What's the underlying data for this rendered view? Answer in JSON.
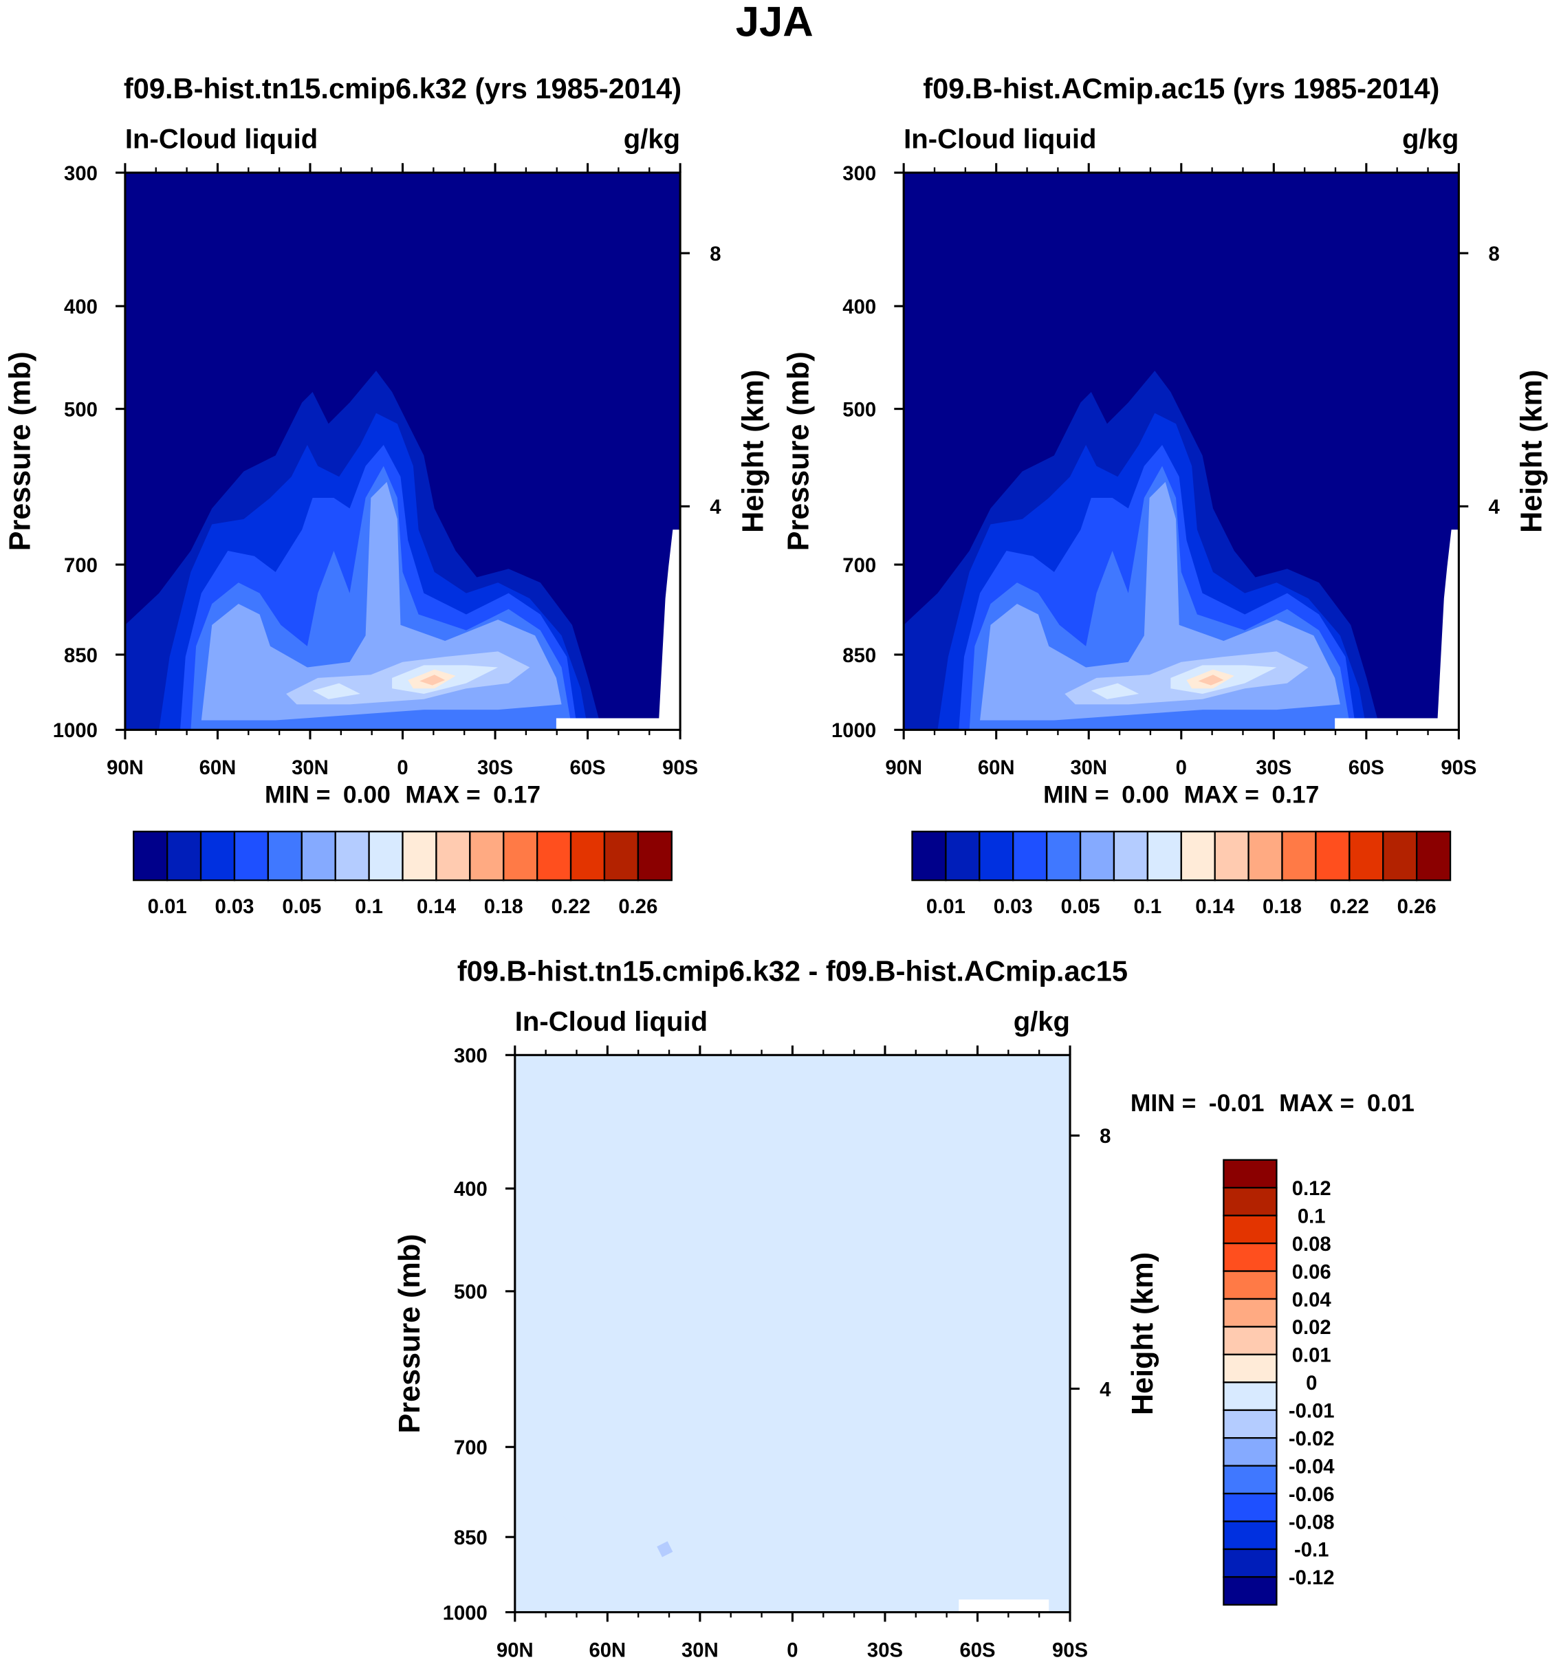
{
  "chart_data": [
    {
      "type": "heatmap",
      "main_title": "JJA",
      "title": "f09.B-hist.tn15.cmip6.k32 (yrs 1985-2014)",
      "left_subtitle": "In-Cloud liquid",
      "right_subtitle": "g/kg",
      "ylabel": "Pressure (mb)",
      "ylabel_right": "Height (km)",
      "x_ticks": [
        "90N",
        "60N",
        "30N",
        "0",
        "30S",
        "60S",
        "90S"
      ],
      "y_ticks": [
        "300",
        "400",
        "500",
        "700",
        "850",
        "1000"
      ],
      "y_ticks_right": [
        "8",
        "4"
      ],
      "xlim": [
        90,
        -90
      ],
      "ylim": [
        1000,
        300
      ],
      "min_label": "MIN =",
      "min_value": "0.00",
      "max_label": "MAX =",
      "max_value": "0.17",
      "colorbar_labels": [
        "0.01",
        "0.03",
        "0.05",
        "0.1",
        "0.14",
        "0.18",
        "0.22",
        "0.26"
      ],
      "colors": [
        "#00008b",
        "#001eba",
        "#0030e0",
        "#1e50ff",
        "#4078ff",
        "#85aaff",
        "#b4ccff",
        "#d8eaff",
        "#ffebd8",
        "#ffcbb0",
        "#ffaa82",
        "#ff7a46",
        "#ff4f1e",
        "#e33400",
        "#b32200",
        "#8b0000"
      ]
    },
    {
      "type": "heatmap",
      "title": "f09.B-hist.ACmip.ac15 (yrs 1985-2014)",
      "left_subtitle": "In-Cloud liquid",
      "right_subtitle": "g/kg",
      "ylabel": "Pressure (mb)",
      "ylabel_right": "Height (km)",
      "x_ticks": [
        "90N",
        "60N",
        "30N",
        "0",
        "30S",
        "60S",
        "90S"
      ],
      "y_ticks": [
        "300",
        "400",
        "500",
        "700",
        "850",
        "1000"
      ],
      "y_ticks_right": [
        "8",
        "4"
      ],
      "xlim": [
        90,
        -90
      ],
      "ylim": [
        1000,
        300
      ],
      "min_label": "MIN =",
      "min_value": "0.00",
      "max_label": "MAX =",
      "max_value": "0.17",
      "colorbar_labels": [
        "0.01",
        "0.03",
        "0.05",
        "0.1",
        "0.14",
        "0.18",
        "0.22",
        "0.26"
      ],
      "colors": [
        "#00008b",
        "#001eba",
        "#0030e0",
        "#1e50ff",
        "#4078ff",
        "#85aaff",
        "#b4ccff",
        "#d8eaff",
        "#ffebd8",
        "#ffcbb0",
        "#ffaa82",
        "#ff7a46",
        "#ff4f1e",
        "#e33400",
        "#b32200",
        "#8b0000"
      ]
    },
    {
      "type": "heatmap",
      "title": "f09.B-hist.tn15.cmip6.k32 - f09.B-hist.ACmip.ac15",
      "left_subtitle": "In-Cloud liquid",
      "right_subtitle": "g/kg",
      "ylabel": "Pressure (mb)",
      "ylabel_right": "Height (km)",
      "x_ticks": [
        "90N",
        "60N",
        "30N",
        "0",
        "30S",
        "60S",
        "90S"
      ],
      "y_ticks": [
        "300",
        "400",
        "500",
        "700",
        "850",
        "1000"
      ],
      "y_ticks_right": [
        "8",
        "4"
      ],
      "xlim": [
        90,
        -90
      ],
      "ylim": [
        1000,
        300
      ],
      "min_label": "MIN =",
      "min_value": "-0.01",
      "max_label": "MAX =",
      "max_value": "0.01",
      "colorbar_labels": [
        "0.12",
        "0.1",
        "0.08",
        "0.06",
        "0.04",
        "0.02",
        "0.01",
        "0",
        "-0.01",
        "-0.02",
        "-0.04",
        "-0.06",
        "-0.08",
        "-0.1",
        "-0.12"
      ],
      "colors": [
        "#8b0000",
        "#b32200",
        "#e33400",
        "#ff4f1e",
        "#ff7a46",
        "#ffaa82",
        "#ffcbb0",
        "#ffebd8",
        "#d8eaff",
        "#b4ccff",
        "#85aaff",
        "#4078ff",
        "#1e50ff",
        "#0030e0",
        "#001eba",
        "#00008b"
      ]
    }
  ]
}
